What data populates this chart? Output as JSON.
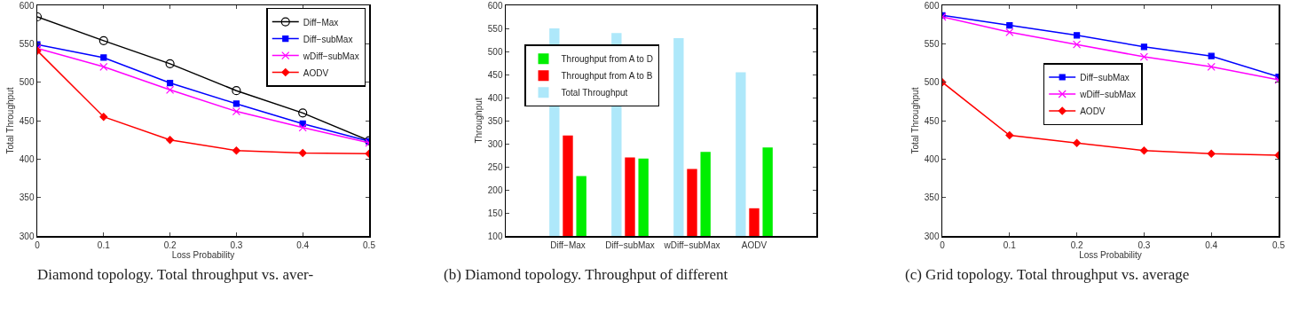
{
  "chart_data": [
    {
      "type": "line",
      "xlabel": "Loss Probability",
      "ylabel": "Total Throughput",
      "x": [
        0,
        0.1,
        0.2,
        0.3,
        0.4,
        0.5
      ],
      "xlim": [
        0,
        0.5
      ],
      "xticks": [
        0,
        0.1,
        0.2,
        0.3,
        0.4,
        0.5
      ],
      "ylim": [
        300,
        600
      ],
      "yticks": [
        300,
        350,
        400,
        450,
        500,
        550,
        600
      ],
      "grid": false,
      "legend": "top right",
      "line_style": "solid",
      "series": [
        {
          "name": "Diff−Max",
          "color": "#000000",
          "marker": "circle",
          "values": [
            585,
            554,
            524,
            489,
            460,
            424
          ]
        },
        {
          "name": "Diff−subMax",
          "color": "#0000ff",
          "marker": "square",
          "values": [
            549,
            532,
            499,
            472,
            446,
            423
          ]
        },
        {
          "name": "wDiff−subMax",
          "color": "#ff00ff",
          "marker": "cross",
          "values": [
            544,
            520,
            490,
            462,
            441,
            421
          ]
        },
        {
          "name": "AODV",
          "color": "#ff0000",
          "marker": "diamond",
          "values": [
            541,
            455,
            425,
            411,
            408,
            407
          ]
        }
      ],
      "annotations": [
        "Diamond topology. Total throughput vs. aver-"
      ]
    },
    {
      "type": "bar",
      "ylabel": "Throughput",
      "categories": [
        "Diff−Max",
        "Diff−subMax",
        "wDiff−subMax",
        "AODV"
      ],
      "ylim": [
        100,
        600
      ],
      "yticks": [
        100,
        150,
        200,
        250,
        300,
        350,
        400,
        450,
        500,
        550,
        600
      ],
      "grid": false,
      "legend": "top left",
      "series": [
        {
          "name": "Total Throughput",
          "color": "#aee8fa",
          "values": [
            550,
            540,
            529,
            455
          ]
        },
        {
          "name": "Throughput from A to B",
          "color": "#ff0000",
          "values": [
            318,
            270,
            245,
            160
          ]
        },
        {
          "name": "Throughput from A to D",
          "color": "#00ee00",
          "values": [
            230,
            268,
            282,
            292
          ]
        }
      ],
      "annotations": [
        "(b) Diamond topology. Throughput of different"
      ]
    },
    {
      "type": "line",
      "xlabel": "Loss Probability",
      "ylabel": "Total Throughput",
      "x": [
        0,
        0.1,
        0.2,
        0.3,
        0.4,
        0.5
      ],
      "xlim": [
        0,
        0.5
      ],
      "xticks": [
        0,
        0.1,
        0.2,
        0.3,
        0.4,
        0.5
      ],
      "ylim": [
        300,
        600
      ],
      "yticks": [
        300,
        350,
        400,
        450,
        500,
        550,
        600
      ],
      "grid": false,
      "legend": "center",
      "line_style": "solid",
      "series": [
        {
          "name": "Diff−subMax",
          "color": "#0000ff",
          "marker": "square",
          "values": [
            587,
            574,
            561,
            546,
            534,
            507
          ]
        },
        {
          "name": "wDiff−subMax",
          "color": "#ff00ff",
          "marker": "cross",
          "values": [
            585,
            565,
            549,
            533,
            520,
            503
          ]
        },
        {
          "name": "AODV",
          "color": "#ff0000",
          "marker": "diamond",
          "values": [
            500,
            431,
            421,
            411,
            407,
            405
          ]
        }
      ],
      "annotations": [
        "(c) Grid topology. Total throughput vs. average"
      ]
    }
  ]
}
